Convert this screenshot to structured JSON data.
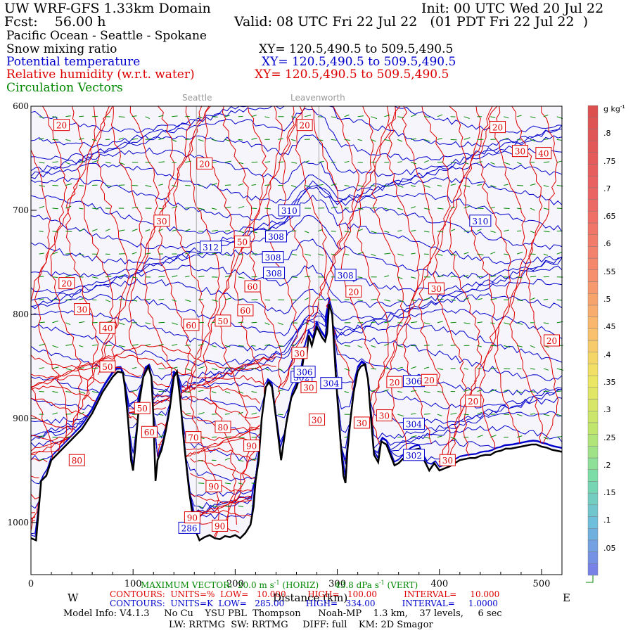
{
  "header": {
    "title_left": "UW WRF-GFS 1.33km Domain",
    "init": "Init: 00 UTC Wed 20 Jul 22",
    "fcst": "Fcst:    56.00 h",
    "valid": "Valid: 08 UTC Fri 22 Jul 22   (01 PDT Fri 22 Jul 22  )",
    "region": "Pacific Ocean - Seattle - Spokane",
    "fields": [
      {
        "name": "Snow mixing ratio",
        "xy": "XY= 120.5,490.5 to 509.5,490.5",
        "color": "#000000"
      },
      {
        "name": "Potential temperature",
        "xy": "XY= 120.5,490.5 to 509.5,490.5",
        "color": "#0000cc"
      },
      {
        "name": "Relative humidity (w.r.t. water)",
        "xy": "XY= 120.5,490.5 to 509.5,490.5",
        "color": "#dd0000"
      },
      {
        "name": "Circulation Vectors",
        "xy": "",
        "color": "#008800"
      }
    ]
  },
  "places": [
    "Seattle",
    "Leavenworth"
  ],
  "footer": {
    "max_vector": "MAXIMUM VECTOR:  20.0 m s",
    "max_vector_sup": "-1",
    "max_vector_mid": " (HORIZ)      43.8 dPa s",
    "max_vector_sup2": "-1",
    "max_vector_end": " (VERT)",
    "xlabel": "Distance (km)",
    "west": "W",
    "east": "E",
    "contours_rh": "CONTOURS:  UNITS=%  LOW=   10.000        HIGH=   100.00          INTERVAL=     10.000",
    "contours_theta": "CONTOURS:  UNITS=K  LOW=   285.00        HIGH=   334.00          INTERVAL=     1.0000",
    "model_info": "Model Info: V4.1.3     No Cu    YSU PBL  Thompson      Noah-MP    1.3 km,    37 levels,     6 sec",
    "model_info2": "LW: RRTMG  SW: RRTMG     DIFF: full    KM: 2D Smagor"
  },
  "colorbar": {
    "unit": "g kg",
    "unit_sup": "-1",
    "labels": [
      ".8",
      ".75",
      ".7",
      ".65",
      ".6",
      ".55",
      ".5",
      ".45",
      ".4",
      ".35",
      ".3",
      ".25",
      ".2",
      ".15",
      ".1",
      ".05"
    ]
  },
  "chart_data": {
    "type": "cross-section",
    "xlabel": "Distance (km)",
    "ylabel": "Pressure (hPa)",
    "xlim": [
      0,
      520
    ],
    "ylim": [
      1050,
      600
    ],
    "xticks": [
      0,
      100,
      200,
      300,
      400,
      500
    ],
    "yticks": [
      600,
      700,
      800,
      900,
      1000
    ],
    "ytick_labels": [
      "600",
      "700",
      "800",
      "900",
      "1000"
    ],
    "vertical_lines_km": [
      162,
      282
    ],
    "terrain": [
      [
        0,
        1015
      ],
      [
        5,
        1017
      ],
      [
        10,
        960
      ],
      [
        15,
        955
      ],
      [
        20,
        940
      ],
      [
        30,
        930
      ],
      [
        40,
        920
      ],
      [
        50,
        910
      ],
      [
        60,
        895
      ],
      [
        70,
        875
      ],
      [
        80,
        860
      ],
      [
        85,
        855
      ],
      [
        90,
        856
      ],
      [
        92,
        870
      ],
      [
        95,
        900
      ],
      [
        98,
        940
      ],
      [
        100,
        950
      ],
      [
        103,
        920
      ],
      [
        106,
        885
      ],
      [
        110,
        860
      ],
      [
        115,
        850
      ],
      [
        118,
        860
      ],
      [
        120,
        900
      ],
      [
        122,
        960
      ],
      [
        124,
        940
      ],
      [
        126,
        935
      ],
      [
        128,
        930
      ],
      [
        132,
        912
      ],
      [
        136,
        890
      ],
      [
        140,
        860
      ],
      [
        143,
        855
      ],
      [
        146,
        880
      ],
      [
        150,
        925
      ],
      [
        155,
        970
      ],
      [
        160,
        1005
      ],
      [
        165,
        1017
      ],
      [
        170,
        1014
      ],
      [
        175,
        1012
      ],
      [
        180,
        1015
      ],
      [
        185,
        1016
      ],
      [
        190,
        1013
      ],
      [
        195,
        1014
      ],
      [
        200,
        1012
      ],
      [
        205,
        1015
      ],
      [
        210,
        1010
      ],
      [
        215,
        1002
      ],
      [
        218,
        985
      ],
      [
        220,
        960
      ],
      [
        223,
        940
      ],
      [
        226,
        900
      ],
      [
        230,
        870
      ],
      [
        233,
        865
      ],
      [
        236,
        870
      ],
      [
        240,
        900
      ],
      [
        245,
        940
      ],
      [
        250,
        905
      ],
      [
        255,
        880
      ],
      [
        260,
        870
      ],
      [
        265,
        855
      ],
      [
        268,
        835
      ],
      [
        270,
        840
      ],
      [
        272,
        820
      ],
      [
        275,
        830
      ],
      [
        280,
        812
      ],
      [
        283,
        818
      ],
      [
        285,
        822
      ],
      [
        288,
        826
      ],
      [
        290,
        818
      ],
      [
        292,
        790
      ],
      [
        295,
        800
      ],
      [
        298,
        850
      ],
      [
        300,
        880
      ],
      [
        303,
        920
      ],
      [
        306,
        955
      ],
      [
        308,
        962
      ],
      [
        310,
        930
      ],
      [
        313,
        900
      ],
      [
        316,
        875
      ],
      [
        320,
        855
      ],
      [
        323,
        850
      ],
      [
        327,
        848
      ],
      [
        330,
        862
      ],
      [
        333,
        900
      ],
      [
        336,
        935
      ],
      [
        340,
        942
      ],
      [
        343,
        922
      ],
      [
        348,
        925
      ],
      [
        352,
        935
      ],
      [
        356,
        945
      ],
      [
        360,
        943
      ],
      [
        365,
        938
      ],
      [
        370,
        933
      ],
      [
        375,
        930
      ],
      [
        380,
        929
      ],
      [
        385,
        940
      ],
      [
        390,
        950
      ],
      [
        395,
        943
      ],
      [
        400,
        950
      ],
      [
        405,
        948
      ],
      [
        410,
        946
      ],
      [
        415,
        943
      ],
      [
        420,
        940
      ],
      [
        425,
        939
      ],
      [
        430,
        938
      ],
      [
        435,
        938
      ],
      [
        440,
        936
      ],
      [
        445,
        935
      ],
      [
        450,
        935
      ],
      [
        455,
        932
      ],
      [
        460,
        931
      ],
      [
        465,
        929
      ],
      [
        470,
        929
      ],
      [
        475,
        928
      ],
      [
        480,
        927
      ],
      [
        485,
        926
      ],
      [
        490,
        925
      ],
      [
        495,
        925
      ],
      [
        500,
        927
      ],
      [
        505,
        928
      ],
      [
        510,
        930
      ],
      [
        515,
        931
      ],
      [
        520,
        932
      ]
    ],
    "theta_labels": [
      {
        "x": 176,
        "p": 735,
        "label": "312"
      },
      {
        "x": 253,
        "p": 700,
        "label": "310"
      },
      {
        "x": 440,
        "p": 710,
        "label": "310"
      },
      {
        "x": 240,
        "p": 725,
        "label": "308"
      },
      {
        "x": 237,
        "p": 745,
        "label": "308"
      },
      {
        "x": 238,
        "p": 760,
        "label": "308"
      },
      {
        "x": 308,
        "p": 762,
        "label": "308"
      },
      {
        "x": 265,
        "p": 860,
        "label": "302"
      },
      {
        "x": 294,
        "p": 866,
        "label": "304"
      },
      {
        "x": 375,
        "p": 864,
        "label": "306"
      },
      {
        "x": 375,
        "p": 905,
        "label": "304"
      },
      {
        "x": 375,
        "p": 935,
        "label": "302"
      },
      {
        "x": 155,
        "p": 1005,
        "label": "286"
      },
      {
        "x": 268,
        "p": 855,
        "label": "306"
      }
    ],
    "rh_labels": [
      {
        "x": 30,
        "p": 618,
        "label": "20"
      },
      {
        "x": 170,
        "p": 655,
        "label": "20"
      },
      {
        "x": 268,
        "p": 618,
        "label": "20"
      },
      {
        "x": 457,
        "p": 620,
        "label": "20"
      },
      {
        "x": 479,
        "p": 643,
        "label": "30"
      },
      {
        "x": 502,
        "p": 645,
        "label": "40"
      },
      {
        "x": 128,
        "p": 710,
        "label": "30"
      },
      {
        "x": 207,
        "p": 730,
        "label": "50"
      },
      {
        "x": 35,
        "p": 770,
        "label": "20"
      },
      {
        "x": 50,
        "p": 795,
        "label": "30"
      },
      {
        "x": 217,
        "p": 773,
        "label": "60"
      },
      {
        "x": 397,
        "p": 775,
        "label": "30"
      },
      {
        "x": 316,
        "p": 778,
        "label": "20"
      },
      {
        "x": 210,
        "p": 796,
        "label": "60"
      },
      {
        "x": 157,
        "p": 810,
        "label": "60"
      },
      {
        "x": 188,
        "p": 806,
        "label": "50"
      },
      {
        "x": 75,
        "p": 813,
        "label": "40"
      },
      {
        "x": 510,
        "p": 825,
        "label": "20"
      },
      {
        "x": 75,
        "p": 850,
        "label": "50"
      },
      {
        "x": 263,
        "p": 837,
        "label": "30"
      },
      {
        "x": 356,
        "p": 865,
        "label": "20"
      },
      {
        "x": 390,
        "p": 863,
        "label": "20"
      },
      {
        "x": 433,
        "p": 883,
        "label": "20"
      },
      {
        "x": 109,
        "p": 890,
        "label": "50"
      },
      {
        "x": 116,
        "p": 913,
        "label": "60"
      },
      {
        "x": 188,
        "p": 908,
        "label": "80"
      },
      {
        "x": 159,
        "p": 918,
        "label": "70"
      },
      {
        "x": 216,
        "p": 926,
        "label": "90"
      },
      {
        "x": 324,
        "p": 904,
        "label": "30"
      },
      {
        "x": 346,
        "p": 897,
        "label": "30"
      },
      {
        "x": 45,
        "p": 940,
        "label": "80"
      },
      {
        "x": 179,
        "p": 965,
        "label": "90"
      },
      {
        "x": 158,
        "p": 995,
        "label": "90"
      },
      {
        "x": 185,
        "p": 1003,
        "label": "90"
      },
      {
        "x": 280,
        "p": 901,
        "label": "30"
      },
      {
        "x": 408,
        "p": 940,
        "label": "30"
      },
      {
        "x": 272,
        "p": 870,
        "label": "30"
      }
    ]
  }
}
